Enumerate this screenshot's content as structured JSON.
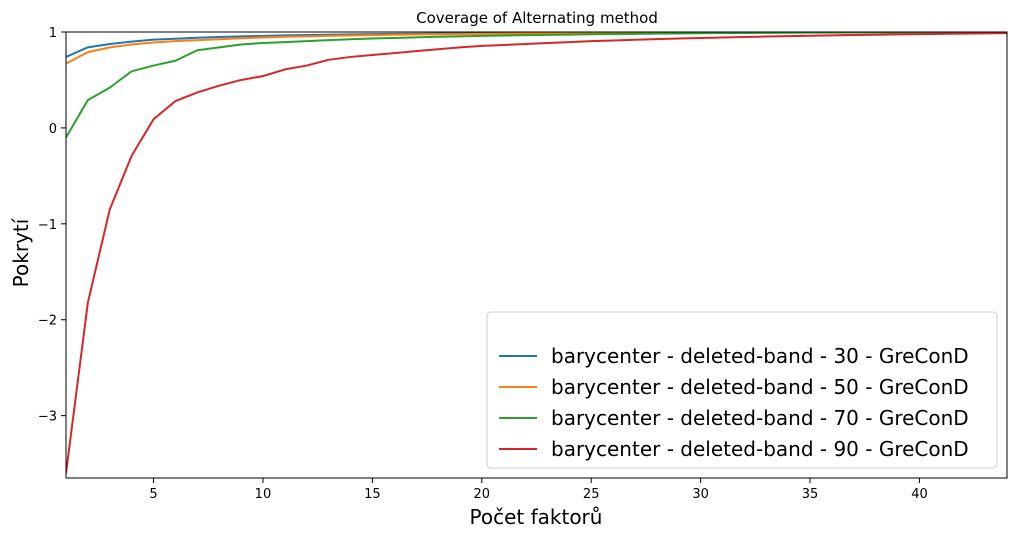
{
  "chart_data": {
    "type": "line",
    "title": "Coverage of Alternating method",
    "xlabel": "Počet faktorů",
    "ylabel": "Pokrytí",
    "xlim": [
      1,
      44
    ],
    "ylim": [
      -3.65,
      1.0
    ],
    "xticks": [
      5,
      10,
      15,
      20,
      25,
      30,
      35,
      40
    ],
    "yticks": [
      1,
      0,
      -1,
      -2,
      -3
    ],
    "ytick_labels": [
      "1",
      "0",
      "−1",
      "−2",
      "−3"
    ],
    "grid": false,
    "legend_position": "bottom-right",
    "x": [
      1,
      2,
      3,
      4,
      5,
      6,
      7,
      8,
      9,
      10,
      11,
      12,
      13,
      14,
      15,
      16,
      17,
      18,
      19,
      20,
      21,
      22,
      23,
      24,
      25,
      26,
      27,
      28,
      29,
      30,
      31,
      32,
      33,
      34,
      35,
      36,
      37,
      38,
      39,
      40,
      41,
      42,
      43,
      44
    ],
    "series": [
      {
        "name": "barycenter - deleted-band - 30 - GreConD",
        "color": "#1f77b4",
        "values": [
          0.74,
          0.84,
          0.875,
          0.9,
          0.92,
          0.93,
          0.94,
          0.948,
          0.954,
          0.96,
          0.965,
          0.969,
          0.972,
          0.975,
          0.978,
          0.98,
          0.982,
          0.984,
          0.986,
          0.987,
          0.988,
          0.989,
          0.99,
          0.991,
          0.992,
          0.993,
          0.994,
          0.995,
          0.995,
          0.996,
          0.996,
          0.997,
          0.997,
          0.998,
          0.998,
          0.998,
          0.999,
          0.999,
          0.999,
          0.999,
          0.999,
          1.0,
          1.0,
          1.0
        ]
      },
      {
        "name": "barycenter - deleted-band - 50 - GreConD",
        "color": "#ff7f0e",
        "values": [
          0.67,
          0.79,
          0.84,
          0.87,
          0.89,
          0.905,
          0.915,
          0.925,
          0.935,
          0.943,
          0.95,
          0.955,
          0.96,
          0.964,
          0.968,
          0.971,
          0.974,
          0.976,
          0.978,
          0.98,
          0.982,
          0.984,
          0.986,
          0.987,
          0.988,
          0.989,
          0.99,
          0.991,
          0.992,
          0.993,
          0.994,
          0.995,
          0.995,
          0.996,
          0.996,
          0.997,
          0.997,
          0.998,
          0.998,
          0.998,
          0.999,
          0.999,
          1.0,
          1.0
        ]
      },
      {
        "name": "barycenter - deleted-band - 70 - GreConD",
        "color": "#2ca02c",
        "values": [
          -0.1,
          0.29,
          0.42,
          0.59,
          0.65,
          0.7,
          0.81,
          0.84,
          0.87,
          0.885,
          0.895,
          0.905,
          0.915,
          0.925,
          0.932,
          0.938,
          0.944,
          0.95,
          0.955,
          0.959,
          0.963,
          0.967,
          0.97,
          0.973,
          0.976,
          0.979,
          0.981,
          0.983,
          0.985,
          0.987,
          0.989,
          0.99,
          0.991,
          0.992,
          0.993,
          0.994,
          0.995,
          0.996,
          0.997,
          0.997,
          0.998,
          0.998,
          0.999,
          0.999
        ]
      },
      {
        "name": "barycenter - deleted-band - 90 - GreConD",
        "color": "#d62728",
        "values": [
          -3.6,
          -1.82,
          -0.85,
          -0.29,
          0.09,
          0.28,
          0.37,
          0.44,
          0.5,
          0.54,
          0.61,
          0.65,
          0.71,
          0.74,
          0.76,
          0.78,
          0.8,
          0.82,
          0.84,
          0.855,
          0.865,
          0.875,
          0.885,
          0.895,
          0.905,
          0.912,
          0.919,
          0.926,
          0.932,
          0.938,
          0.943,
          0.948,
          0.953,
          0.957,
          0.961,
          0.965,
          0.969,
          0.972,
          0.975,
          0.978,
          0.98,
          0.983,
          0.986,
          0.988
        ]
      }
    ]
  }
}
